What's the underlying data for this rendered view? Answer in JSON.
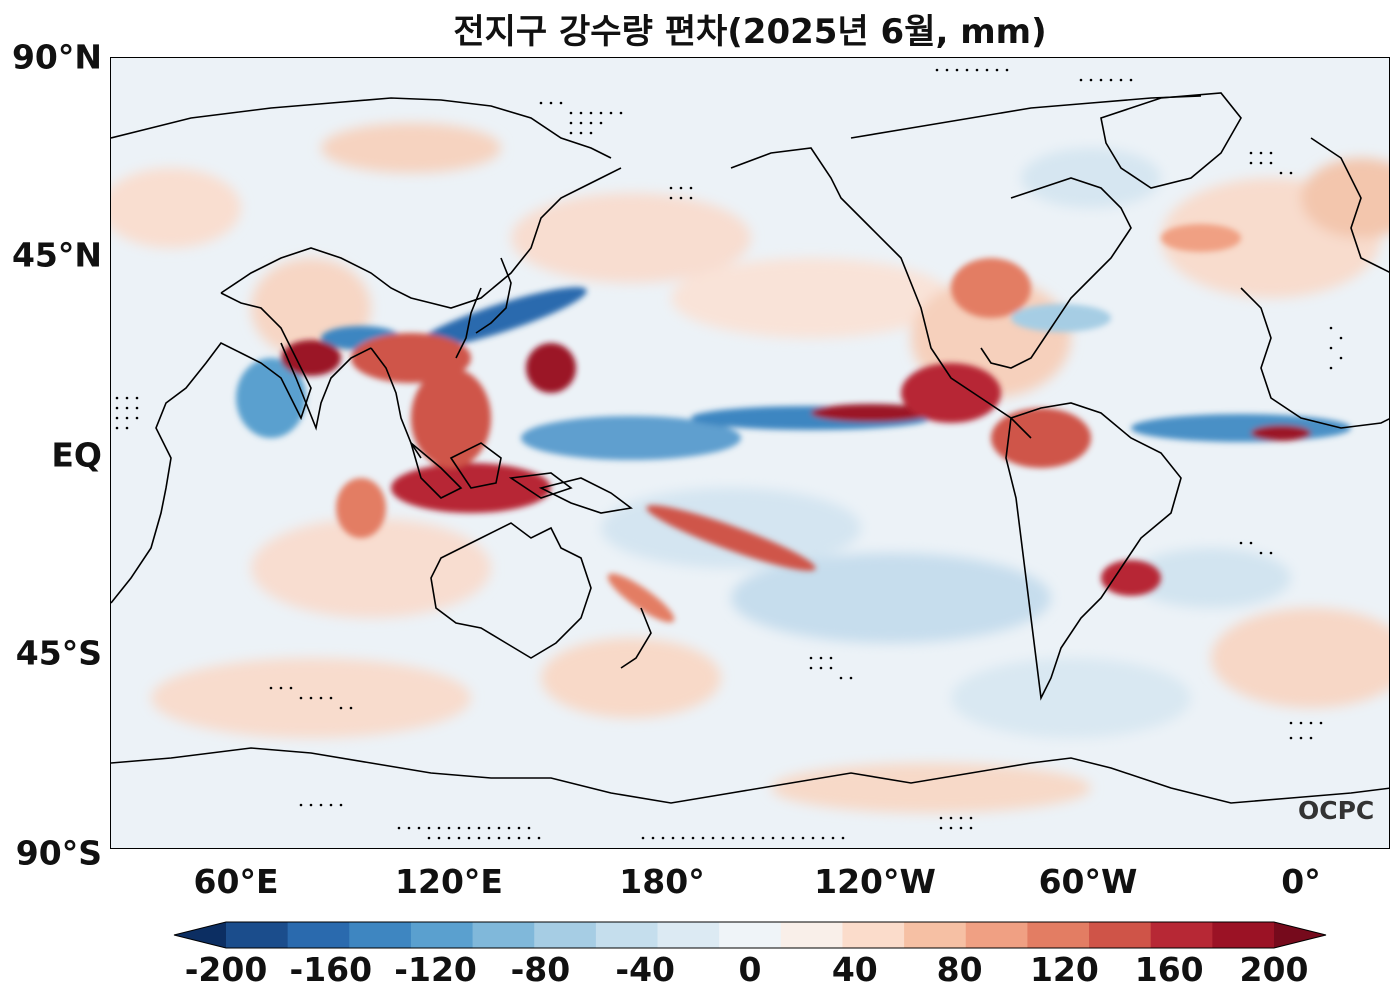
{
  "title": "전지구 강수량 편차(2025년 6월, mm)",
  "lat_labels": [
    "90°N",
    "45°N",
    "EQ",
    "45°S",
    "90°S"
  ],
  "lon_labels": [
    "60°E",
    "120°E",
    "180°",
    "120°W",
    "60°W",
    "0°"
  ],
  "colorbar": {
    "tick_labels": [
      "-200",
      "-160",
      "-120",
      "-80",
      "-40",
      "0",
      "40",
      "80",
      "120",
      "160",
      "200"
    ],
    "colors": [
      "#0c2e62",
      "#1b4d8c",
      "#2a6aae",
      "#3e86c1",
      "#5aa0cf",
      "#80b8da",
      "#a6cde4",
      "#c5deed",
      "#dceaf3",
      "#eff4f8",
      "#f9efe9",
      "#fbdccb",
      "#f6c0a4",
      "#f0a083",
      "#e37d63",
      "#cf5448",
      "#b72835",
      "#9b1225",
      "#760a1c"
    ],
    "extend": "both"
  },
  "watermark": "OCPC",
  "legend_location": "bottom"
}
